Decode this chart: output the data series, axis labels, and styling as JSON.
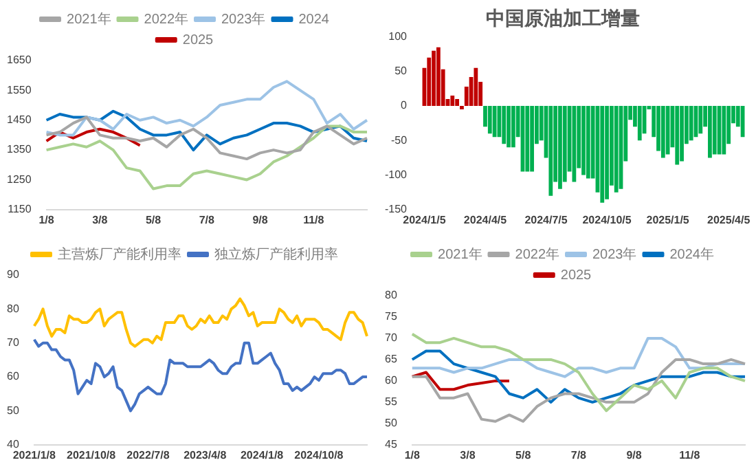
{
  "chart_data": [
    {
      "type": "line",
      "categories": [
        "1/8",
        null,
        null,
        null,
        "3/8",
        null,
        null,
        null,
        "5/8",
        null,
        null,
        null,
        "7/8",
        null,
        null,
        null,
        "9/8",
        null,
        null,
        null,
        "11/8",
        null,
        null,
        null,
        null
      ],
      "ylim": [
        1150,
        1650
      ],
      "yticks": [
        1150,
        1250,
        1350,
        1450,
        1550,
        1650
      ],
      "grid": false,
      "legend": "top",
      "marker": "none",
      "line_style": "solid",
      "series": [
        {
          "name": "2021年",
          "color": "#a6a6a6",
          "values": [
            1400,
            1410,
            1440,
            1460,
            1400,
            1390,
            1390,
            1380,
            1390,
            1360,
            1400,
            1420,
            1390,
            1340,
            1330,
            1320,
            1340,
            1350,
            1340,
            1350,
            1410,
            1430,
            1400,
            1370,
            1390
          ]
        },
        {
          "name": "2022年",
          "color": "#a9d18e",
          "values": [
            1350,
            1360,
            1370,
            1360,
            1380,
            1350,
            1290,
            1280,
            1220,
            1230,
            1230,
            1270,
            1280,
            1270,
            1260,
            1250,
            1270,
            1310,
            1330,
            1360,
            1390,
            1430,
            1430,
            1410,
            1410
          ]
        },
        {
          "name": "2023年",
          "color": "#9dc3e6",
          "values": [
            1410,
            1400,
            1400,
            1460,
            1450,
            1420,
            1470,
            1450,
            1460,
            1440,
            1450,
            1430,
            1460,
            1500,
            1510,
            1520,
            1520,
            1560,
            1580,
            1550,
            1520,
            1440,
            1470,
            1420,
            1450
          ]
        },
        {
          "name": "2024",
          "color": "#0070c0",
          "values": [
            1450,
            1470,
            1460,
            1460,
            1450,
            1480,
            1460,
            1420,
            1400,
            1400,
            1410,
            1350,
            1400,
            1370,
            1390,
            1400,
            1420,
            1440,
            1440,
            1430,
            1410,
            1420,
            1430,
            1390,
            1380
          ]
        },
        {
          "name": "2025",
          "color": "#c00000",
          "values": [
            1380,
            1410,
            1390,
            1410,
            1420,
            1410,
            1390,
            1365,
            null,
            null,
            null,
            null,
            null,
            null,
            null,
            null,
            null,
            null,
            null,
            null,
            null,
            null,
            null,
            null,
            null
          ]
        }
      ]
    },
    {
      "type": "bar",
      "title": "中国原油加工增量",
      "categories": [
        "2024/1/5",
        null,
        null,
        null,
        null,
        null,
        null,
        null,
        null,
        null,
        null,
        null,
        null,
        "2024/4/5",
        null,
        null,
        null,
        null,
        null,
        null,
        null,
        null,
        null,
        null,
        null,
        null,
        "2024/7/5",
        null,
        null,
        null,
        null,
        null,
        null,
        null,
        null,
        null,
        null,
        null,
        null,
        "2024/10/5",
        null,
        null,
        null,
        null,
        null,
        null,
        null,
        null,
        null,
        null,
        null,
        null,
        "2025/1/5",
        null,
        null,
        null,
        null,
        null,
        null,
        null,
        null,
        null,
        null,
        null,
        null,
        "2025/4/5",
        null,
        null,
        null
      ],
      "ylim": [
        -150,
        100
      ],
      "yticks": [
        -150,
        -100,
        -50,
        0,
        50,
        100
      ],
      "grid": false,
      "legend": false,
      "values": [
        55,
        70,
        80,
        85,
        53,
        10,
        15,
        10,
        -5,
        28,
        42,
        55,
        35,
        -30,
        -40,
        -45,
        -45,
        -55,
        -60,
        -60,
        -45,
        -95,
        -95,
        -95,
        -55,
        -50,
        -75,
        -130,
        -110,
        -120,
        -110,
        -95,
        -110,
        -90,
        -100,
        -105,
        -105,
        -125,
        -140,
        -135,
        -115,
        -125,
        -120,
        -80,
        -20,
        -30,
        -50,
        -40,
        -5,
        -45,
        -65,
        -75,
        -70,
        -60,
        -85,
        -80,
        -55,
        -50,
        -45,
        -40,
        -30,
        -75,
        -70,
        -70,
        -70,
        -55,
        -25,
        -30,
        -45
      ],
      "colors": [
        "#c00000",
        "#c00000",
        "#c00000",
        "#c00000",
        "#c00000",
        "#c00000",
        "#c00000",
        "#c00000",
        "#c00000",
        "#c00000",
        "#c00000",
        "#c00000",
        "#c00000",
        "#00b050",
        "#00b050",
        "#00b050",
        "#00b050",
        "#00b050",
        "#00b050",
        "#00b050",
        "#00b050",
        "#00b050",
        "#00b050",
        "#00b050",
        "#00b050",
        "#00b050",
        "#00b050",
        "#00b050",
        "#00b050",
        "#00b050",
        "#00b050",
        "#00b050",
        "#00b050",
        "#00b050",
        "#00b050",
        "#00b050",
        "#00b050",
        "#00b050",
        "#00b050",
        "#00b050",
        "#00b050",
        "#00b050",
        "#00b050",
        "#00b050",
        "#00b050",
        "#00b050",
        "#00b050",
        "#00b050",
        "#00b050",
        "#00b050",
        "#00b050",
        "#00b050",
        "#00b050",
        "#00b050",
        "#00b050",
        "#00b050",
        "#00b050",
        "#00b050",
        "#00b050",
        "#00b050",
        "#00b050",
        "#00b050",
        "#00b050",
        "#00b050",
        "#00b050",
        "#00b050",
        "#00b050",
        "#00b050",
        "#00b050"
      ]
    },
    {
      "type": "line",
      "categories": [
        "2021/1/8",
        null,
        null,
        null,
        null,
        null,
        null,
        null,
        null,
        null,
        null,
        null,
        null,
        "2021/10/8",
        null,
        null,
        null,
        null,
        null,
        null,
        null,
        null,
        null,
        null,
        null,
        null,
        "2022/7/8",
        null,
        null,
        null,
        null,
        null,
        null,
        null,
        null,
        null,
        null,
        null,
        null,
        "2023/4/8",
        null,
        null,
        null,
        null,
        null,
        null,
        null,
        null,
        null,
        null,
        null,
        null,
        "2024/1/8",
        null,
        null,
        null,
        null,
        null,
        null,
        null,
        null,
        null,
        null,
        null,
        null,
        "2024/10/8",
        null,
        null,
        null,
        null,
        null,
        null,
        null,
        null,
        null,
        null,
        null
      ],
      "ylim": [
        40,
        90
      ],
      "yticks": [
        40,
        50,
        60,
        70,
        80,
        90
      ],
      "grid": false,
      "legend": "top",
      "marker": "none",
      "line_style": "solid",
      "series": [
        {
          "name": "主营炼厂产能利用率",
          "color": "#ffc000",
          "values": [
            75,
            77,
            80,
            75,
            72,
            74,
            74,
            73,
            78,
            77,
            77,
            76,
            76,
            77,
            79,
            80,
            75,
            77,
            78,
            79,
            79,
            74,
            70,
            69,
            70,
            71,
            71,
            70,
            72,
            71,
            76,
            76,
            76,
            78,
            78,
            75,
            74,
            75,
            77,
            76,
            78,
            76,
            76,
            78,
            77,
            80,
            81,
            83,
            81,
            78,
            79,
            75,
            76,
            76,
            76,
            76,
            80,
            79,
            77,
            76,
            78,
            75,
            77,
            77,
            77,
            76,
            74,
            74,
            73,
            72,
            71,
            76,
            79,
            79,
            77,
            76,
            72
          ]
        },
        {
          "name": "独立炼厂产能利用率",
          "color": "#4472c4",
          "values": [
            71,
            69,
            70,
            70,
            68,
            68,
            66,
            65,
            65,
            62,
            55,
            57,
            59,
            58,
            64,
            63,
            60,
            61,
            63,
            57,
            56,
            53,
            50,
            52,
            55,
            56,
            57,
            56,
            55,
            55,
            58,
            65,
            64,
            64,
            64,
            63,
            63,
            63,
            63,
            64,
            65,
            64,
            62,
            61,
            61,
            63,
            64,
            64,
            70,
            70,
            64,
            64,
            65,
            66,
            67,
            64,
            62,
            58,
            58,
            56,
            57,
            56,
            57,
            58,
            60,
            59,
            61,
            61,
            61,
            62,
            62,
            61,
            58,
            58,
            59,
            60,
            60
          ]
        }
      ]
    },
    {
      "type": "line",
      "categories": [
        "1/8",
        null,
        null,
        null,
        "3/8",
        null,
        null,
        null,
        "5/8",
        null,
        null,
        null,
        "7/8",
        null,
        null,
        null,
        "9/8",
        null,
        null,
        null,
        "11/8",
        null,
        null,
        null,
        null
      ],
      "ylim": [
        45,
        80
      ],
      "yticks": [
        45,
        50,
        55,
        60,
        65,
        70,
        75,
        80
      ],
      "grid": false,
      "legend": "top",
      "marker": "none",
      "line_style": "solid",
      "series": [
        {
          "name": "2021年",
          "color": "#a9d18e",
          "values": [
            71,
            69,
            69,
            70,
            69,
            68,
            68,
            67,
            65,
            65,
            65,
            64,
            62,
            57,
            53,
            56,
            59,
            58,
            60,
            56,
            62,
            63,
            63,
            61,
            60
          ]
        },
        {
          "name": "2022年",
          "color": "#a6a6a6",
          "values": [
            61,
            61,
            56,
            56,
            57,
            51,
            50.5,
            52,
            50.5,
            54,
            56,
            57,
            57,
            56,
            55,
            55,
            55,
            57,
            62,
            65,
            65,
            64,
            64,
            65,
            64
          ]
        },
        {
          "name": "2023年",
          "color": "#9dc3e6",
          "values": [
            63,
            63,
            63,
            62,
            63,
            63,
            64,
            65,
            65,
            63,
            62,
            61,
            63,
            63,
            62,
            63,
            63,
            70,
            70,
            68,
            63,
            63,
            64,
            64,
            64
          ]
        },
        {
          "name": "2024年",
          "color": "#0070c0",
          "values": [
            65,
            67,
            67,
            64,
            63,
            62,
            61,
            57,
            56,
            58,
            55,
            58,
            56,
            55,
            56,
            57,
            59,
            60,
            61,
            61,
            61,
            62,
            62,
            61,
            61
          ]
        },
        {
          "name": "2025",
          "color": "#c00000",
          "values": [
            61,
            62,
            58,
            58,
            59,
            59.5,
            60,
            60,
            null,
            null,
            null,
            null,
            null,
            null,
            null,
            null,
            null,
            null,
            null,
            null,
            null,
            null,
            null,
            null,
            null
          ]
        }
      ]
    }
  ]
}
